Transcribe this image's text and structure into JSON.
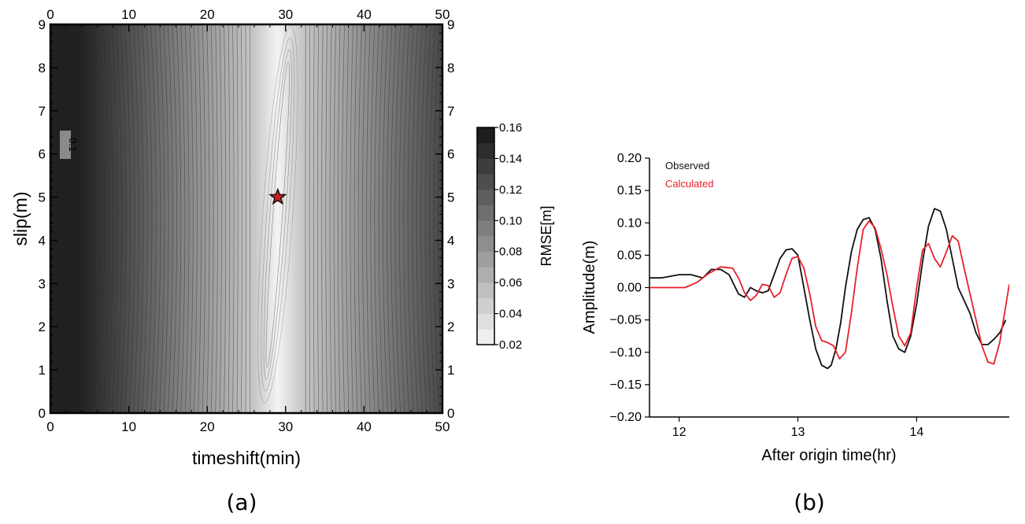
{
  "chart_data": [
    {
      "type": "heatmap",
      "panel_label": "(a)",
      "xlabel": "timeshift(min)",
      "ylabel": "slip(m)",
      "xlim": [
        0,
        50
      ],
      "ylim": [
        0,
        9
      ],
      "xticks": [
        "0",
        "10",
        "20",
        "30",
        "40",
        "50"
      ],
      "yticks": [
        "0",
        "1",
        "2",
        "3",
        "4",
        "5",
        "6",
        "7",
        "8",
        "9"
      ],
      "contour_label": "0.1",
      "colorbar": {
        "label": "RMSE[m]",
        "ticks": [
          "0.02",
          "0.04",
          "0.06",
          "0.08",
          "0.10",
          "0.12",
          "0.14",
          "0.16"
        ],
        "range": [
          0.02,
          0.16
        ]
      },
      "minimum": {
        "x": 29,
        "y": 5,
        "color": "#c62026"
      },
      "colors": {
        "low": "#f7f7f7",
        "high": "#151515"
      }
    },
    {
      "type": "line",
      "panel_label": "(b)",
      "xlabel": "After origin time(hr)",
      "ylabel": "Amplitude(m)",
      "xlim": [
        11.75,
        14.78
      ],
      "ylim": [
        -0.2,
        0.2
      ],
      "xticks": [
        "12",
        "13",
        "14"
      ],
      "yticks": [
        "0.20",
        "0.15",
        "0.10",
        "0.05",
        "0.00",
        "−0.05",
        "−0.10",
        "−0.15",
        "−0.20"
      ],
      "series": [
        {
          "name": "Observed",
          "color": "#111111",
          "x": [
            11.75,
            11.85,
            12.0,
            12.1,
            12.2,
            12.27,
            12.35,
            12.42,
            12.5,
            12.55,
            12.6,
            12.65,
            12.7,
            12.75,
            12.8,
            12.85,
            12.9,
            12.95,
            13.0,
            13.05,
            13.1,
            13.15,
            13.2,
            13.25,
            13.28,
            13.32,
            13.36,
            13.4,
            13.45,
            13.5,
            13.55,
            13.6,
            13.65,
            13.7,
            13.75,
            13.8,
            13.85,
            13.9,
            13.95,
            14.0,
            14.05,
            14.1,
            14.15,
            14.2,
            14.25,
            14.3,
            14.35,
            14.4,
            14.45,
            14.5,
            14.55,
            14.6,
            14.65,
            14.7,
            14.75
          ],
          "y": [
            0.015,
            0.015,
            0.02,
            0.02,
            0.015,
            0.028,
            0.028,
            0.02,
            -0.01,
            -0.015,
            0.0,
            -0.005,
            -0.008,
            -0.005,
            0.02,
            0.045,
            0.058,
            0.06,
            0.05,
            0.0,
            -0.05,
            -0.095,
            -0.12,
            -0.125,
            -0.12,
            -0.095,
            -0.055,
            0.0,
            0.055,
            0.09,
            0.105,
            0.108,
            0.09,
            0.045,
            -0.02,
            -0.075,
            -0.095,
            -0.1,
            -0.075,
            -0.025,
            0.04,
            0.095,
            0.122,
            0.118,
            0.09,
            0.045,
            0.0,
            -0.02,
            -0.04,
            -0.07,
            -0.088,
            -0.088,
            -0.08,
            -0.07,
            -0.05
          ]
        },
        {
          "name": "Calculated",
          "color": "#e8202a",
          "x": [
            11.75,
            11.9,
            12.05,
            12.15,
            12.25,
            12.35,
            12.45,
            12.5,
            12.55,
            12.6,
            12.65,
            12.7,
            12.75,
            12.8,
            12.85,
            12.9,
            12.95,
            13.0,
            13.05,
            13.1,
            13.15,
            13.2,
            13.25,
            13.3,
            13.35,
            13.4,
            13.45,
            13.5,
            13.55,
            13.6,
            13.65,
            13.7,
            13.75,
            13.8,
            13.85,
            13.9,
            13.95,
            14.0,
            14.05,
            14.1,
            14.15,
            14.2,
            14.25,
            14.3,
            14.35,
            14.4,
            14.45,
            14.5,
            14.55,
            14.6,
            14.65,
            14.7,
            14.78
          ],
          "y": [
            0.0,
            0.0,
            0.0,
            0.008,
            0.022,
            0.032,
            0.03,
            0.015,
            -0.008,
            -0.02,
            -0.012,
            0.005,
            0.003,
            -0.015,
            -0.008,
            0.02,
            0.045,
            0.048,
            0.03,
            -0.01,
            -0.06,
            -0.082,
            -0.085,
            -0.09,
            -0.11,
            -0.1,
            -0.04,
            0.03,
            0.09,
            0.103,
            0.092,
            0.06,
            0.02,
            -0.03,
            -0.075,
            -0.09,
            -0.07,
            0.0,
            0.058,
            0.068,
            0.045,
            0.032,
            0.055,
            0.08,
            0.072,
            0.03,
            -0.01,
            -0.05,
            -0.09,
            -0.115,
            -0.118,
            -0.085,
            0.005
          ]
        }
      ]
    }
  ]
}
